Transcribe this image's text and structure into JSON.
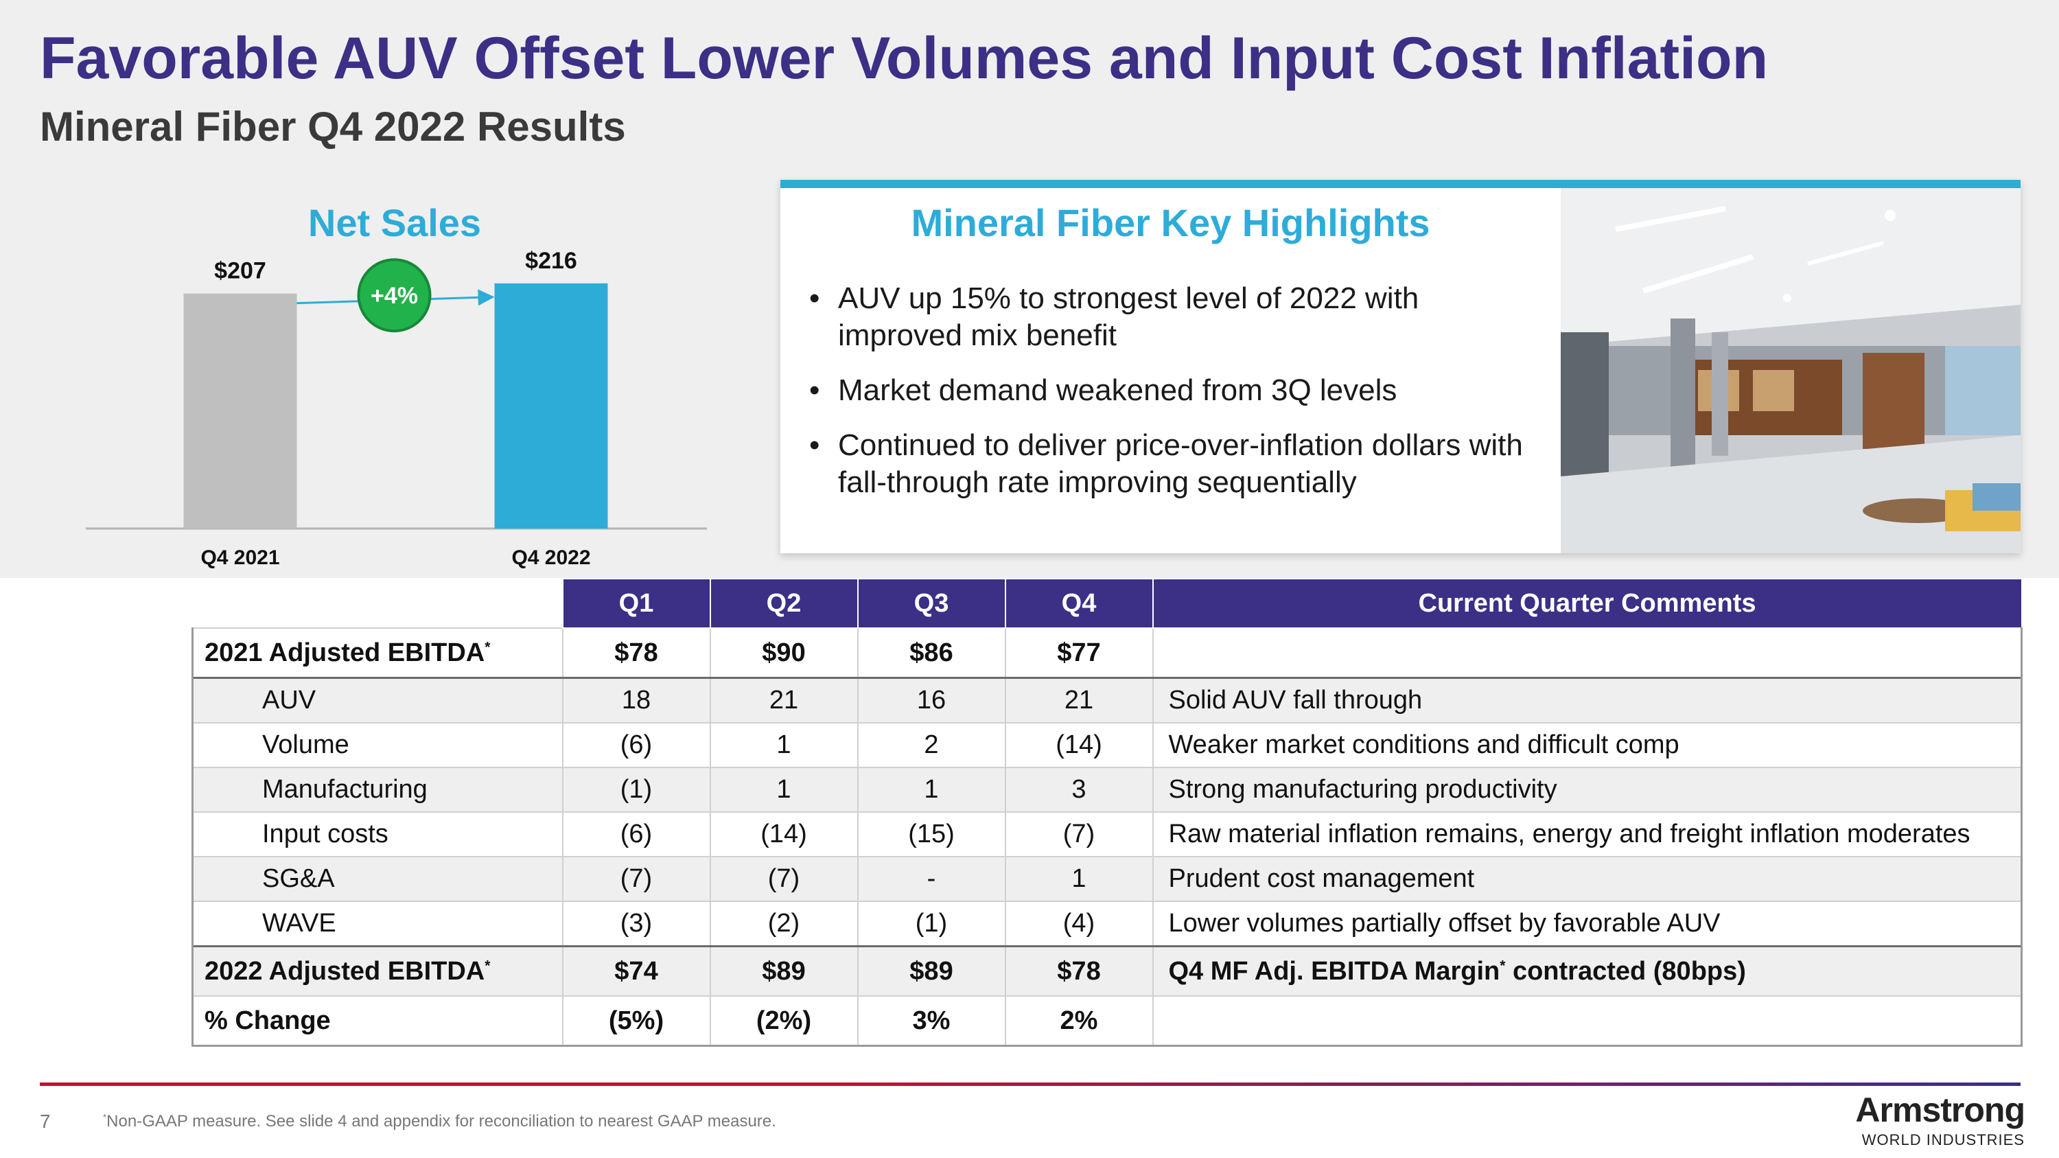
{
  "header": {
    "title": "Favorable AUV Offset Lower Volumes and Input Cost Inflation",
    "subtitle": "Mineral Fiber Q4 2022 Results"
  },
  "chart_data": {
    "type": "bar",
    "title": "Net Sales",
    "categories": [
      "Q4 2021",
      "Q4 2022"
    ],
    "values": [
      207,
      216
    ],
    "value_labels": [
      "$207",
      "$216"
    ],
    "bar_colors": [
      "#bfbfbf",
      "#2eacd8"
    ],
    "change_badge": "+4%",
    "badge_color": "#22b24c",
    "ylim": [
      0,
      260
    ]
  },
  "highlights": {
    "title": "Mineral Fiber Key Highlights",
    "bullets": [
      "AUV up 15% to strongest level of 2022 with improved mix benefit",
      "Market demand weakened from 3Q levels",
      "Continued to deliver price-over-inflation dollars with fall-through rate improving sequentially"
    ]
  },
  "table": {
    "headers": [
      "Q1",
      "Q2",
      "Q3",
      "Q4",
      "Current Quarter Comments"
    ],
    "rows": [
      {
        "label": "2021 Adjusted EBITDA",
        "q1": "$78",
        "q2": "$90",
        "q3": "$86",
        "q4": "$77",
        "comment": ""
      },
      {
        "label": "AUV",
        "q1": "18",
        "q2": "21",
        "q3": "16",
        "q4": "21",
        "comment": "Solid AUV fall through"
      },
      {
        "label": "Volume",
        "q1": "(6)",
        "q2": "1",
        "q3": "2",
        "q4": "(14)",
        "comment": "Weaker market conditions and difficult comp"
      },
      {
        "label": "Manufacturing",
        "q1": "(1)",
        "q2": "1",
        "q3": "1",
        "q4": "3",
        "comment": "Strong manufacturing productivity"
      },
      {
        "label": "Input costs",
        "q1": "(6)",
        "q2": "(14)",
        "q3": "(15)",
        "q4": "(7)",
        "comment": "Raw material inflation remains, energy and freight inflation moderates"
      },
      {
        "label": "SG&A",
        "q1": "(7)",
        "q2": "(7)",
        "q3": "-",
        "q4": "1",
        "comment": "Prudent cost management"
      },
      {
        "label": "WAVE",
        "q1": "(3)",
        "q2": "(2)",
        "q3": "(1)",
        "q4": "(4)",
        "comment": "Lower volumes partially offset by favorable AUV"
      },
      {
        "label": "2022 Adjusted EBITDA",
        "q1": "$74",
        "q2": "$89",
        "q3": "$89",
        "q4": "$78",
        "comment": "Q4 MF Adj. EBITDA Margin",
        "comment_suffix": " contracted (80bps)"
      },
      {
        "label": "% Change",
        "q1": "(5%)",
        "q2": "(2%)",
        "q3": "3%",
        "q4": "2%",
        "comment": ""
      }
    ],
    "footnote_marker": "*"
  },
  "footer": {
    "page_number": "7",
    "footnote": "Non-GAAP measure. See slide 4 and appendix for reconciliation to nearest GAAP measure.",
    "logo_text": "Armstrong",
    "logo_sub": "WORLD INDUSTRIES"
  },
  "colors": {
    "title": "#3b2f86",
    "accent": "#2eacd8",
    "table_header": "#3b2f86",
    "footer_rule": "#c8102e"
  }
}
